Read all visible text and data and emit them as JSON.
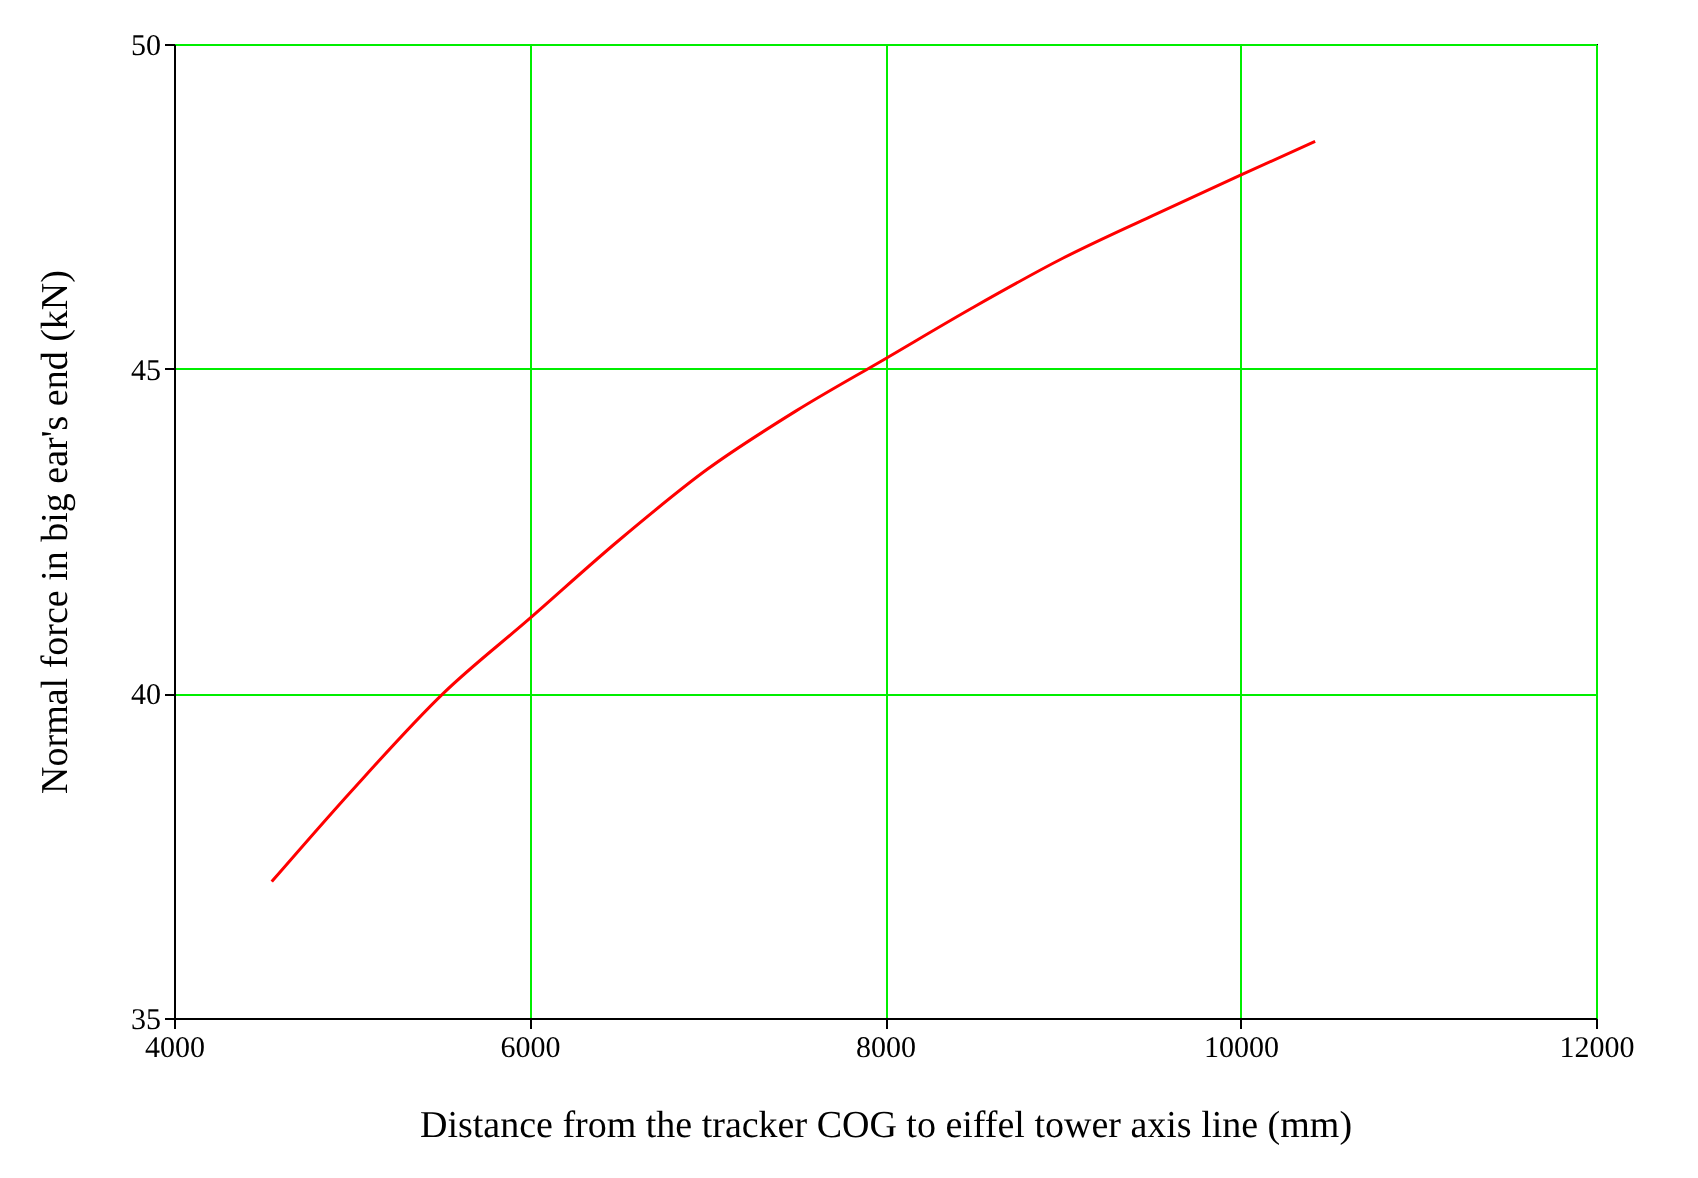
{
  "chart_data": {
    "type": "line",
    "xlabel": "Distance from the tracker COG to eiffel tower axis line (mm)",
    "ylabel": "Normal force in big ear's end (kN)",
    "x": [
      4550,
      5000,
      5515,
      6000,
      6500,
      7000,
      7500,
      8000,
      8500,
      9000,
      9500,
      10000,
      10420
    ],
    "series": [
      {
        "color": "#ff0000",
        "values": [
          37.1,
          38.5,
          40,
          41.15,
          42.35,
          43.45,
          44.35,
          45.15,
          45.95,
          46.7,
          47.35,
          47.98,
          48.5
        ]
      }
    ],
    "xlim": [
      4000,
      12000
    ],
    "xticks": [
      4000,
      6000,
      8000,
      10000,
      12000
    ],
    "ylim": [
      35,
      50
    ],
    "yticks": [
      35,
      40,
      45,
      50
    ],
    "grid": true,
    "line_style": "solid"
  }
}
